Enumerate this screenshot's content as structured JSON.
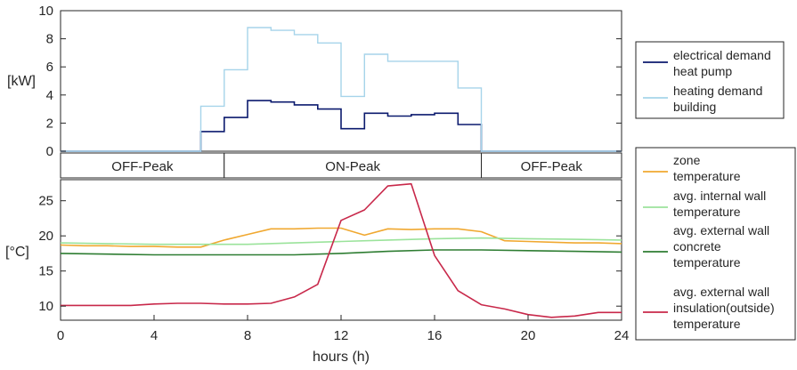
{
  "chart_data": [
    {
      "type": "line",
      "ylabel": "[kW]",
      "xlim": [
        0,
        24
      ],
      "ylim": [
        0,
        10
      ],
      "yticks": [
        0,
        2,
        4,
        6,
        8,
        10
      ],
      "grid": false,
      "legend_position": "right",
      "series": [
        {
          "name": "electrical demand heat pump",
          "name_lines": [
            "electrical demand",
            "heat pump"
          ],
          "color": "#0b1a6e",
          "step": true,
          "x": [
            6,
            7,
            8,
            9,
            10,
            11,
            12,
            13,
            14,
            15,
            16,
            17,
            18
          ],
          "values": [
            1.4,
            2.4,
            3.6,
            3.5,
            3.3,
            3.0,
            1.6,
            2.7,
            2.5,
            2.6,
            2.7,
            1.9,
            0
          ]
        },
        {
          "name": "heating demand building",
          "name_lines": [
            "heating demand",
            "building"
          ],
          "color": "#a6d4ea",
          "step": true,
          "x": [
            6,
            7,
            8,
            9,
            10,
            11,
            12,
            13,
            14,
            15,
            16,
            17,
            18
          ],
          "values": [
            3.2,
            5.8,
            8.8,
            8.6,
            8.3,
            7.7,
            3.9,
            6.9,
            6.4,
            6.4,
            6.4,
            4.5,
            0
          ]
        }
      ],
      "periods": [
        {
          "label": "OFF-Peak",
          "start": 0,
          "end": 7
        },
        {
          "label": "ON-Peak",
          "start": 7,
          "end": 18
        },
        {
          "label": "OFF-Peak",
          "start": 18,
          "end": 24
        }
      ]
    },
    {
      "type": "line",
      "xlabel": "hours (h)",
      "ylabel": "[°C]",
      "xlim": [
        0,
        24
      ],
      "ylim": [
        8,
        28
      ],
      "xticks": [
        0,
        4,
        8,
        12,
        16,
        20,
        24
      ],
      "yticks": [
        10,
        15,
        20,
        25
      ],
      "grid": false,
      "legend_position": "right",
      "series": [
        {
          "name": "zone temperature",
          "name_lines": [
            "zone",
            "temperature"
          ],
          "color": "#f0a830",
          "x": [
            0,
            1,
            2,
            3,
            4,
            5,
            6,
            7,
            8,
            9,
            10,
            11,
            12,
            13,
            14,
            15,
            16,
            17,
            18,
            19,
            20,
            21,
            22,
            23,
            24
          ],
          "values": [
            18.7,
            18.6,
            18.6,
            18.5,
            18.5,
            18.4,
            18.4,
            19.4,
            20.2,
            21.0,
            21.0,
            21.1,
            21.1,
            20.1,
            21.0,
            20.9,
            21.0,
            21.0,
            20.6,
            19.3,
            19.2,
            19.1,
            19.0,
            19.0,
            18.9
          ]
        },
        {
          "name": "avg. internal wall temperature",
          "name_lines": [
            "avg. internal wall",
            "temperature"
          ],
          "color": "#9be39b",
          "x": [
            0,
            2,
            4,
            6,
            8,
            10,
            12,
            14,
            16,
            18,
            20,
            22,
            24
          ],
          "values": [
            19.0,
            18.9,
            18.8,
            18.8,
            18.8,
            19.0,
            19.2,
            19.4,
            19.6,
            19.7,
            19.6,
            19.5,
            19.4
          ]
        },
        {
          "name": "avg. external wall concrete temperature",
          "name_lines": [
            "avg. external wall",
            "concrete",
            "temperature"
          ],
          "color": "#2e7d32",
          "x": [
            0,
            2,
            4,
            6,
            8,
            10,
            12,
            14,
            16,
            18,
            20,
            22,
            24
          ],
          "values": [
            17.5,
            17.4,
            17.3,
            17.3,
            17.3,
            17.3,
            17.5,
            17.8,
            18.0,
            18.0,
            17.9,
            17.8,
            17.7
          ]
        },
        {
          "name": "avg. external wall insulation(outside) temperature",
          "name_lines": [
            "avg. external wall",
            "insulation(outside)",
            "temperature"
          ],
          "color": "#c8284a",
          "x": [
            0,
            1,
            2,
            3,
            4,
            5,
            6,
            7,
            8,
            9,
            10,
            11,
            12,
            13,
            14,
            15,
            16,
            17,
            18,
            19,
            20,
            21,
            22,
            23,
            24
          ],
          "values": [
            10.1,
            10.1,
            10.1,
            10.1,
            10.3,
            10.4,
            10.4,
            10.3,
            10.3,
            10.4,
            11.3,
            13.1,
            22.2,
            23.7,
            27.1,
            27.4,
            17.2,
            12.2,
            10.2,
            9.6,
            8.8,
            8.4,
            8.6,
            9.1,
            9.1
          ]
        }
      ]
    }
  ]
}
